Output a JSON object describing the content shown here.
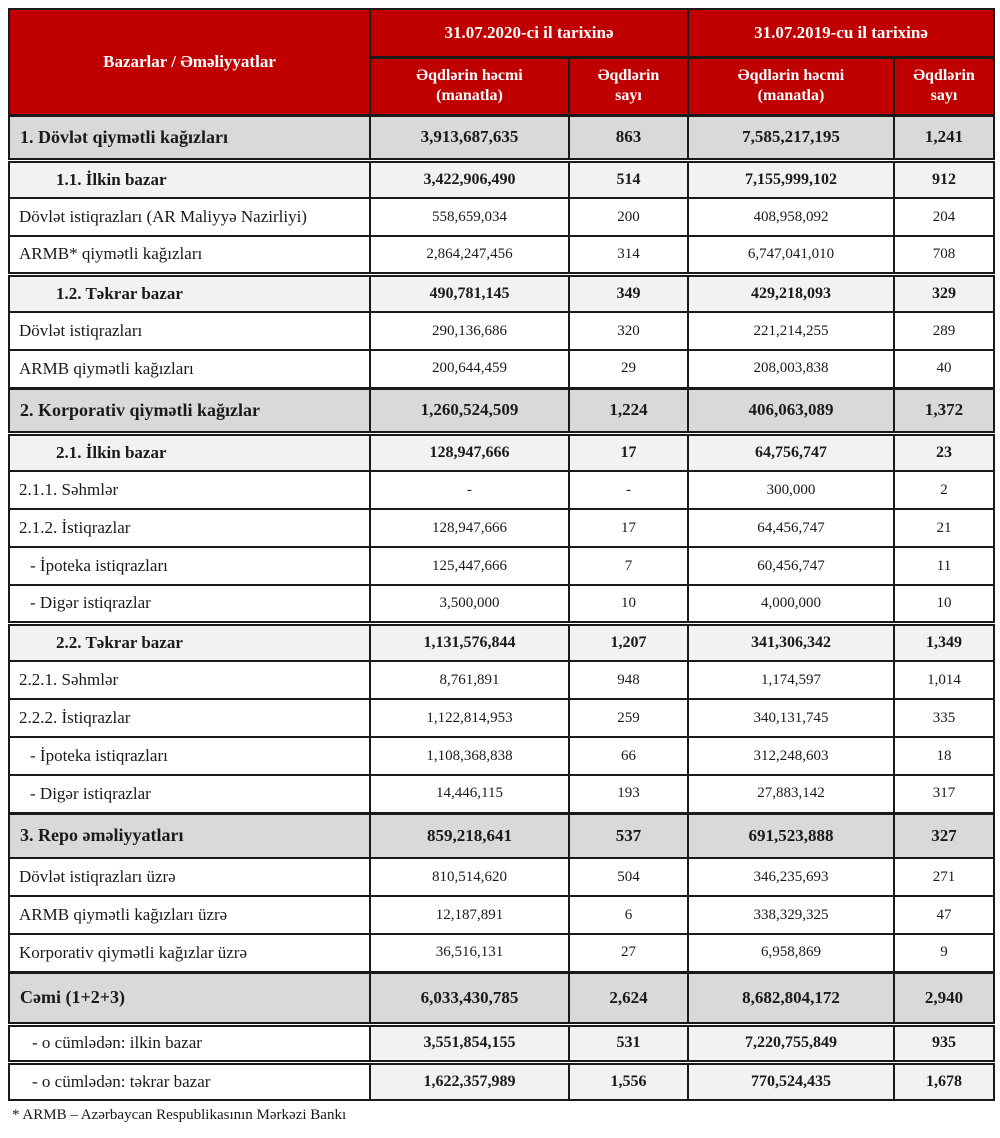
{
  "colors": {
    "header_bg": "#c00000",
    "header_text": "#ffffff",
    "section_row_bg": "#d9d9d9",
    "subsection_row_bg": "#f2f2f2",
    "border": "#1a1a1a"
  },
  "table": {
    "header": {
      "col_label": "Bazarlar / Əməliyyatlar",
      "group_2020": "31.07.2020-ci il tarixinə",
      "group_2019": "31.07.2019-cu il tarixinə",
      "sub_volume": "Əqdlərin həcmi (manatla)",
      "sub_count": "Əqdlərin sayı"
    },
    "rows": [
      {
        "style": "section",
        "label": "1. Dövlət qiymətli kağızları",
        "v2020": "3,913,687,635",
        "c2020": "863",
        "v2019": "7,585,217,195",
        "c2019": "1,241"
      },
      {
        "style": "subsection",
        "label": "1.1. İlkin bazar",
        "v2020": "3,422,906,490",
        "c2020": "514",
        "v2019": "7,155,999,102",
        "c2019": "912"
      },
      {
        "style": "normal",
        "label": "Dövlət istiqrazları (AR Maliyyə Nazirliyi)",
        "v2020": "558,659,034",
        "c2020": "200",
        "v2019": "408,958,092",
        "c2019": "204"
      },
      {
        "style": "normal",
        "label": "ARMB* qiymətli kağızları",
        "v2020": "2,864,247,456",
        "c2020": "314",
        "v2019": "6,747,041,010",
        "c2019": "708"
      },
      {
        "style": "subsection",
        "label": "1.2. Təkrar bazar",
        "v2020": "490,781,145",
        "c2020": "349",
        "v2019": "429,218,093",
        "c2019": "329"
      },
      {
        "style": "normal",
        "label": "Dövlət istiqrazları",
        "v2020": "290,136,686",
        "c2020": "320",
        "v2019": "221,214,255",
        "c2019": "289"
      },
      {
        "style": "normal",
        "label": "ARMB qiymətli kağızları",
        "v2020": "200,644,459",
        "c2020": "29",
        "v2019": "208,003,838",
        "c2019": "40"
      },
      {
        "style": "section",
        "label": "2. Korporativ qiymətli kağızlar",
        "v2020": "1,260,524,509",
        "c2020": "1,224",
        "v2019": "406,063,089",
        "c2019": "1,372"
      },
      {
        "style": "subsection",
        "label": "2.1. İlkin bazar",
        "v2020": "128,947,666",
        "c2020": "17",
        "v2019": "64,756,747",
        "c2019": "23"
      },
      {
        "style": "normal",
        "label": "2.1.1. Səhmlər",
        "v2020": "-",
        "c2020": "-",
        "v2019": "300,000",
        "c2019": "2"
      },
      {
        "style": "normal",
        "label": "2.1.2. İstiqrazlar",
        "v2020": "128,947,666",
        "c2020": "17",
        "v2019": "64,456,747",
        "c2019": "21"
      },
      {
        "style": "indent",
        "label": "-  İpoteka istiqrazları",
        "v2020": "125,447,666",
        "c2020": "7",
        "v2019": "60,456,747",
        "c2019": "11"
      },
      {
        "style": "indent",
        "label": "-  Digər istiqrazlar",
        "v2020": "3,500,000",
        "c2020": "10",
        "v2019": "4,000,000",
        "c2019": "10"
      },
      {
        "style": "subsection",
        "label": "2.2. Təkrar bazar",
        "v2020": "1,131,576,844",
        "c2020": "1,207",
        "v2019": "341,306,342",
        "c2019": "1,349"
      },
      {
        "style": "normal",
        "label": "2.2.1. Səhmlər",
        "v2020": "8,761,891",
        "c2020": "948",
        "v2019": "1,174,597",
        "c2019": "1,014"
      },
      {
        "style": "normal",
        "label": "2.2.2. İstiqrazlar",
        "v2020": "1,122,814,953",
        "c2020": "259",
        "v2019": "340,131,745",
        "c2019": "335"
      },
      {
        "style": "indent",
        "label": "-  İpoteka istiqrazları",
        "v2020": "1,108,368,838",
        "c2020": "66",
        "v2019": "312,248,603",
        "c2019": "18"
      },
      {
        "style": "indent",
        "label": "-  Digər istiqrazlar",
        "v2020": "14,446,115",
        "c2020": "193",
        "v2019": "27,883,142",
        "c2019": "317"
      },
      {
        "style": "section",
        "label": "3. Repo əməliyyatları",
        "v2020": "859,218,641",
        "c2020": "537",
        "v2019": "691,523,888",
        "c2019": "327"
      },
      {
        "style": "normal",
        "label": "Dövlət istiqrazları üzrə",
        "v2020": "810,514,620",
        "c2020": "504",
        "v2019": "346,235,693",
        "c2019": "271"
      },
      {
        "style": "normal",
        "label": "ARMB qiymətli kağızları üzrə",
        "v2020": "12,187,891",
        "c2020": "6",
        "v2019": "338,329,325",
        "c2019": "47"
      },
      {
        "style": "normal",
        "label": "Korporativ qiymətli kağızlar üzrə",
        "v2020": "36,516,131",
        "c2020": "27",
        "v2019": "6,958,869",
        "c2019": "9"
      },
      {
        "style": "total",
        "label": "Cəmi (1+2+3)",
        "v2020": "6,033,430,785",
        "c2020": "2,624",
        "v2019": "8,682,804,172",
        "c2019": "2,940"
      },
      {
        "style": "totalsub",
        "label": "-  o cümlədən: ilkin bazar",
        "v2020": "3,551,854,155",
        "c2020": "531",
        "v2019": "7,220,755,849",
        "c2019": "935"
      },
      {
        "style": "totalsub",
        "label": "-  o cümlədən: təkrar bazar",
        "v2020": "1,622,357,989",
        "c2020": "1,556",
        "v2019": "770,524,435",
        "c2019": "1,678"
      }
    ],
    "footnote": "* ARMB – Azərbaycan Respublikasının Mərkəzi Bankı"
  }
}
